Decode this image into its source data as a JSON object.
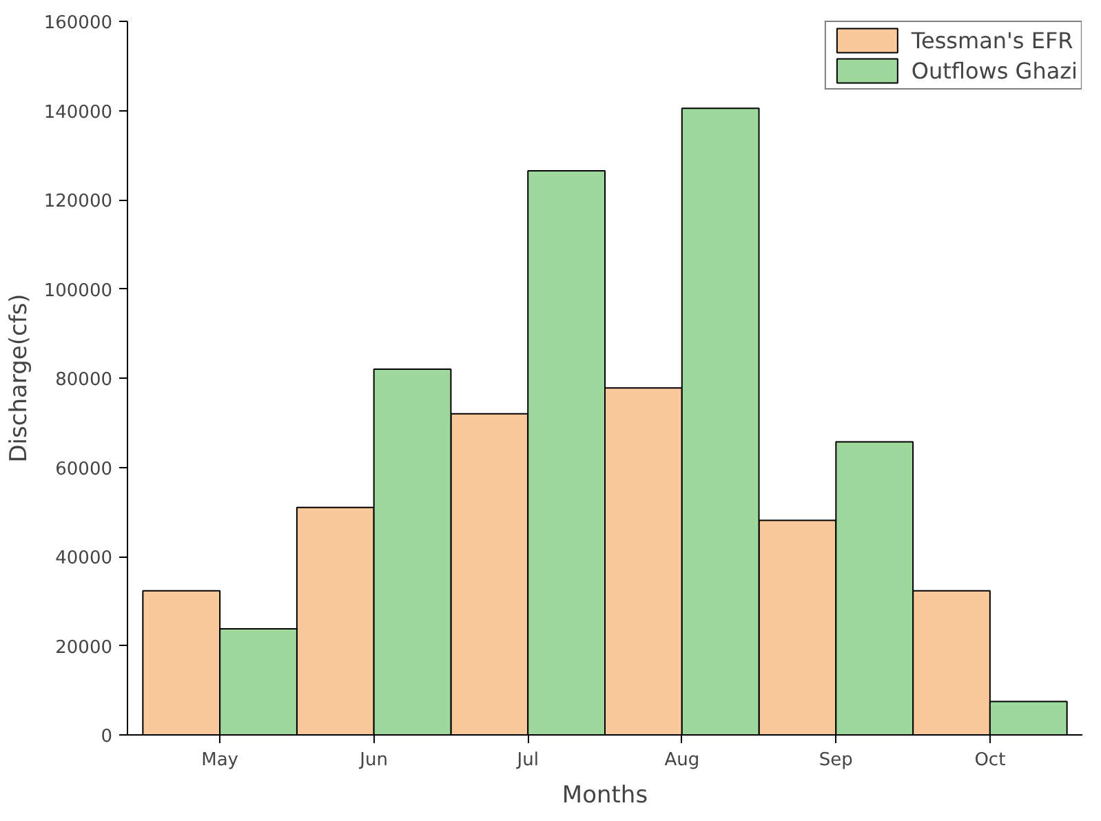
{
  "chart_data": {
    "type": "bar",
    "xlabel": "Months",
    "ylabel": "Discharge(cfs)",
    "categories": [
      "May",
      "Jun",
      "Jul",
      "Aug",
      "Sep",
      "Oct"
    ],
    "series": [
      {
        "name": "Tessman's EFR",
        "color": "#f9c89b",
        "values": [
          32300,
          51000,
          72000,
          77800,
          48100,
          32300
        ]
      },
      {
        "name": "Outflows Ghazi",
        "color": "#9fd89c",
        "values": [
          23800,
          82000,
          126500,
          140500,
          65700,
          7500
        ]
      }
    ],
    "ylim": [
      0,
      160000
    ],
    "yticks": [
      0,
      20000,
      40000,
      60000,
      80000,
      100000,
      120000,
      140000,
      160000
    ],
    "grid": false,
    "legend": "top right"
  }
}
